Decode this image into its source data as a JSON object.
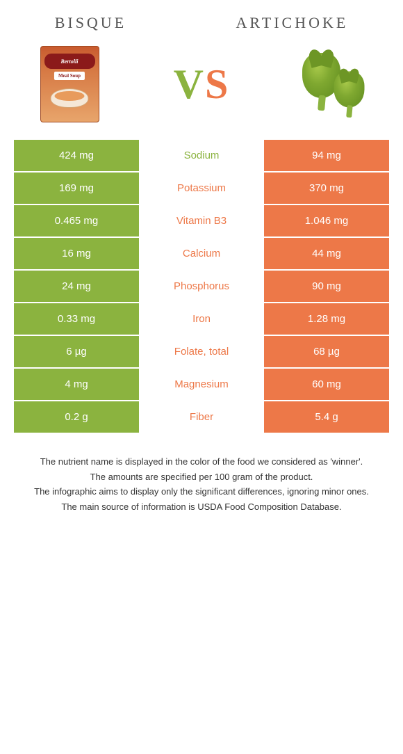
{
  "foods": {
    "left": {
      "name": "BISQUE",
      "color": "#8bb33f"
    },
    "right": {
      "name": "ARTICHOKE",
      "color": "#ed7848"
    }
  },
  "vs": {
    "v": "V",
    "s": "S"
  },
  "product_label": {
    "brand": "Bertolli",
    "sub": "Meal Soup"
  },
  "rows": [
    {
      "left": "424 mg",
      "nutrient": "Sodium",
      "right": "94 mg",
      "winner": "left"
    },
    {
      "left": "169 mg",
      "nutrient": "Potassium",
      "right": "370 mg",
      "winner": "right"
    },
    {
      "left": "0.465 mg",
      "nutrient": "Vitamin B3",
      "right": "1.046 mg",
      "winner": "right"
    },
    {
      "left": "16 mg",
      "nutrient": "Calcium",
      "right": "44 mg",
      "winner": "right"
    },
    {
      "left": "24 mg",
      "nutrient": "Phosphorus",
      "right": "90 mg",
      "winner": "right"
    },
    {
      "left": "0.33 mg",
      "nutrient": "Iron",
      "right": "1.28 mg",
      "winner": "right"
    },
    {
      "left": "6 µg",
      "nutrient": "Folate, total",
      "right": "68 µg",
      "winner": "right"
    },
    {
      "left": "4 mg",
      "nutrient": "Magnesium",
      "right": "60 mg",
      "winner": "right"
    },
    {
      "left": "0.2 g",
      "nutrient": "Fiber",
      "right": "5.4 g",
      "winner": "right"
    }
  ],
  "footnotes": [
    "The nutrient name is displayed in the color of the food we considered as 'winner'.",
    "The amounts are specified per 100 gram of the product.",
    "The infographic aims to display only the significant differences, ignoring minor ones.",
    "The main source of information is USDA Food Composition Database."
  ],
  "colors": {
    "green": "#8bb33f",
    "orange": "#ed7848",
    "background": "#ffffff",
    "text": "#333333",
    "title": "#555555"
  }
}
